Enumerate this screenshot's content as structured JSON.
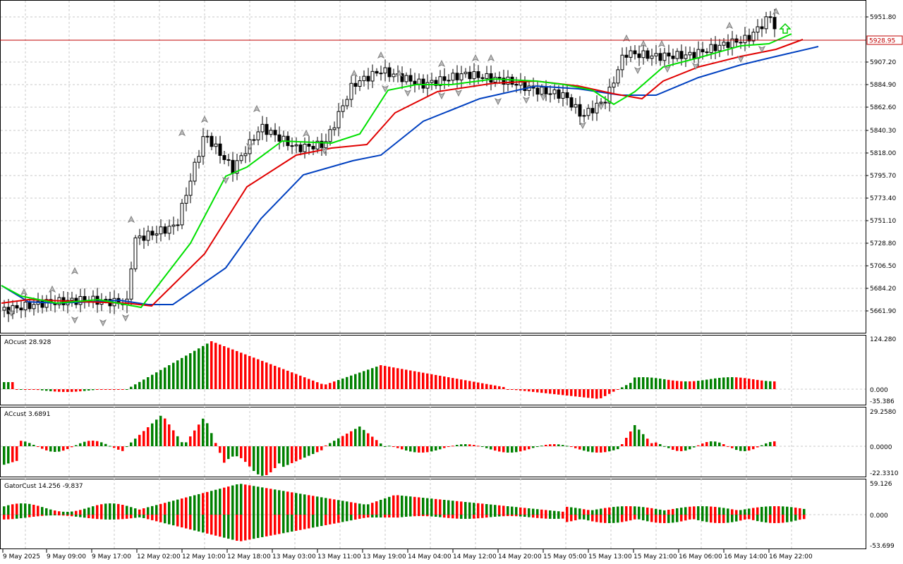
{
  "main_panel": {
    "current_price": "5928.95",
    "price_axis": [
      "5951.80",
      "5907.20",
      "5884.90",
      "5862.60",
      "5840.30",
      "5818.00",
      "5795.70",
      "5773.40",
      "5751.10",
      "5728.80",
      "5706.50",
      "5684.20",
      "5661.90"
    ]
  },
  "ao_panel": {
    "label": "AOcust 28.928",
    "axis": [
      "124.280",
      "0.000",
      "-35.386"
    ]
  },
  "ac_panel": {
    "label": "ACcust 3.6891",
    "axis": [
      "29.2580",
      "0.0000",
      "-22.3310"
    ]
  },
  "gator_panel": {
    "label": "GatorCust 14.256 -9.837",
    "axis": [
      "59.126",
      "0.000",
      "-53.699"
    ]
  },
  "time_axis": [
    "9 May 2025",
    "9 May 09:00",
    "9 May 17:00",
    "12 May 02:00",
    "12 May 10:00",
    "12 May 18:00",
    "13 May 03:00",
    "13 May 11:00",
    "13 May 19:00",
    "14 May 04:00",
    "14 May 12:00",
    "14 May 20:00",
    "15 May 05:00",
    "15 May 13:00",
    "15 May 21:00",
    "16 May 06:00",
    "16 May 14:00",
    "16 May 22:00"
  ],
  "colors": {
    "bull": "#008000",
    "bear": "#ff0000",
    "lips": "#00e000",
    "teeth": "#e00000",
    "jaw": "#0040c0",
    "grid": "#c8c8c8"
  }
}
